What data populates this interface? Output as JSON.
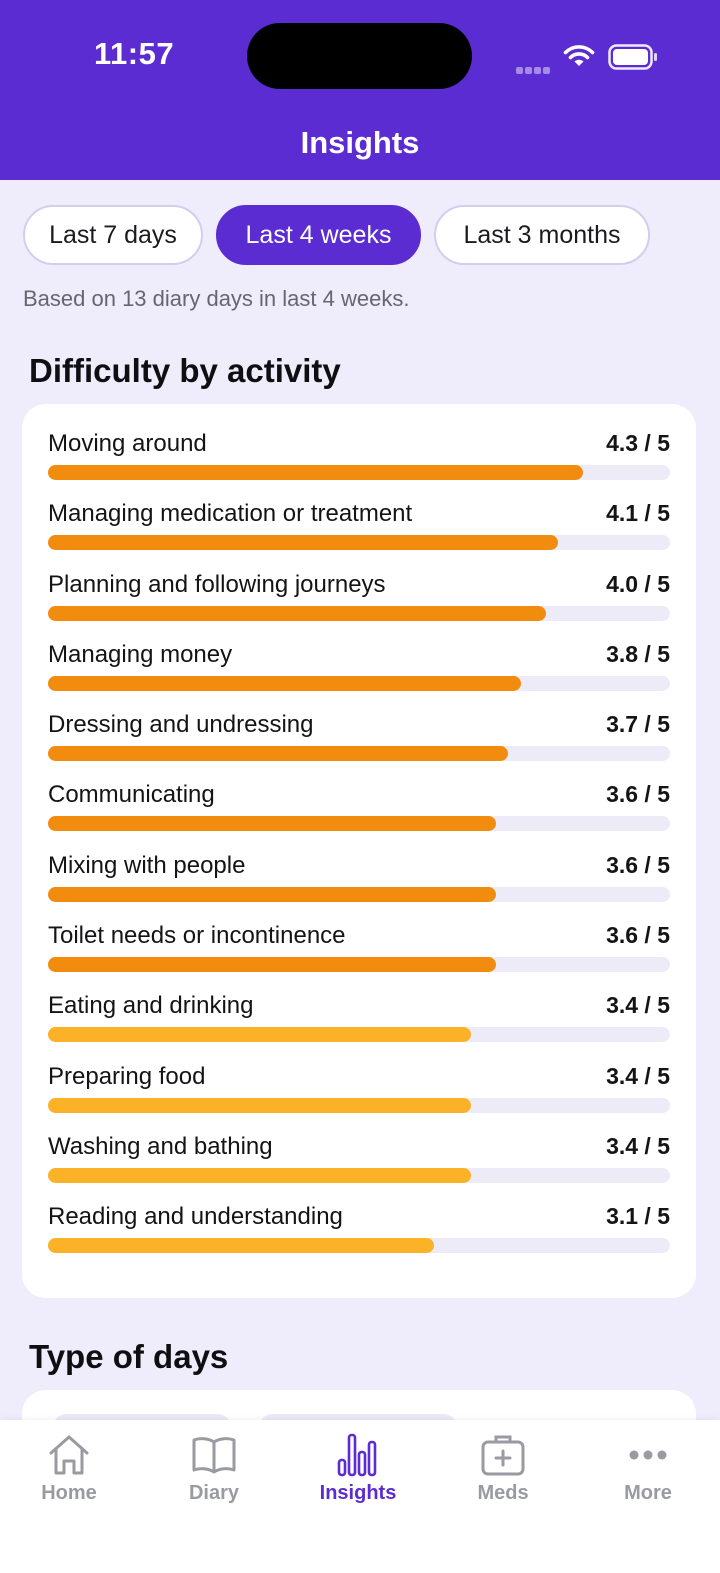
{
  "status_bar": {
    "time": "11:57"
  },
  "header": {
    "title": "Insights"
  },
  "range": {
    "options": [
      "Last 7 days",
      "Last 4 weeks",
      "Last 3 months"
    ],
    "selected": "Last 4 weeks"
  },
  "summary": "Based on 13 diary days in last 4 weeks.",
  "difficulty": {
    "title": "Difficulty by activity",
    "max": 5,
    "colors": {
      "high": "#f28c0f",
      "medium": "#fbb227",
      "track": "#eeebf8"
    },
    "items": [
      {
        "label": "Moving around",
        "score": 4.3,
        "score_text": "4.3 / 5",
        "level": "high"
      },
      {
        "label": "Managing medication or treatment",
        "score": 4.1,
        "score_text": "4.1 / 5",
        "level": "high"
      },
      {
        "label": "Planning and following journeys",
        "score": 4.0,
        "score_text": "4.0 / 5",
        "level": "high"
      },
      {
        "label": "Managing money",
        "score": 3.8,
        "score_text": "3.8 / 5",
        "level": "high"
      },
      {
        "label": "Dressing and undressing",
        "score": 3.7,
        "score_text": "3.7 / 5",
        "level": "high"
      },
      {
        "label": "Communicating",
        "score": 3.6,
        "score_text": "3.6 / 5",
        "level": "high"
      },
      {
        "label": "Mixing with people",
        "score": 3.6,
        "score_text": "3.6 / 5",
        "level": "high"
      },
      {
        "label": "Toilet needs or incontinence",
        "score": 3.6,
        "score_text": "3.6 / 5",
        "level": "high"
      },
      {
        "label": "Eating and drinking",
        "score": 3.4,
        "score_text": "3.4 / 5",
        "level": "medium"
      },
      {
        "label": "Preparing food",
        "score": 3.4,
        "score_text": "3.4 / 5",
        "level": "medium"
      },
      {
        "label": "Washing and bathing",
        "score": 3.4,
        "score_text": "3.4 / 5",
        "level": "medium"
      },
      {
        "label": "Reading and understanding",
        "score": 3.1,
        "score_text": "3.1 / 5",
        "level": "medium"
      }
    ]
  },
  "type_of_days": {
    "title": "Type of days"
  },
  "tabbar": {
    "items": [
      {
        "label": "Home",
        "icon": "home-icon"
      },
      {
        "label": "Diary",
        "icon": "book-icon"
      },
      {
        "label": "Insights",
        "icon": "bar-chart-icon"
      },
      {
        "label": "Meds",
        "icon": "medical-kit-icon"
      },
      {
        "label": "More",
        "icon": "more-dots-icon"
      }
    ],
    "active": "Insights"
  },
  "theme": {
    "brand": "#5b2cd1",
    "background": "#efecfb"
  }
}
